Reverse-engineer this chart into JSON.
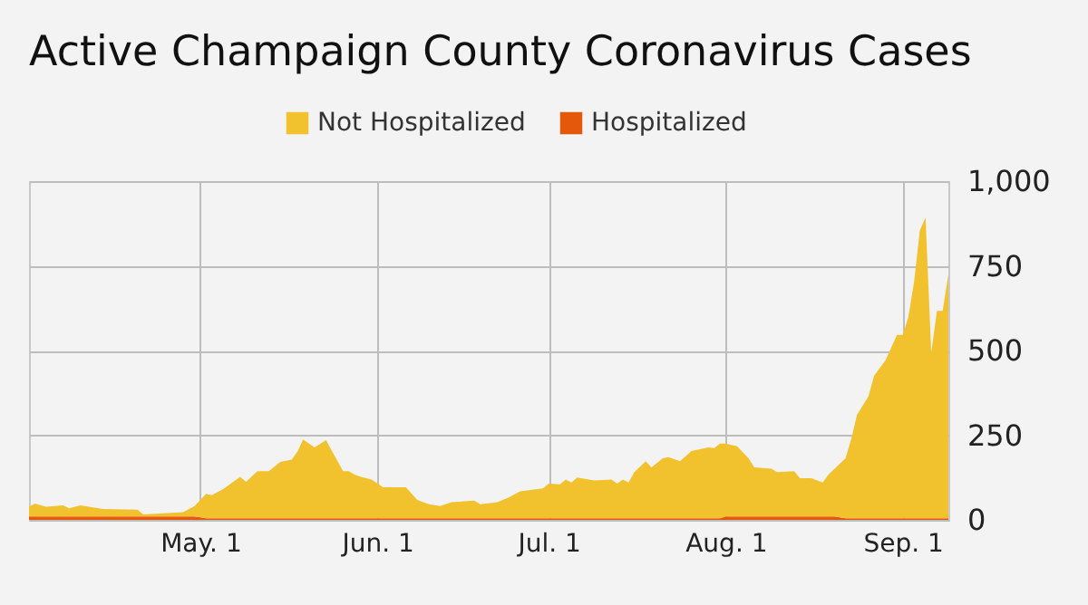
{
  "chart_data": {
    "type": "area",
    "title": "Active Champaign County Coronavirus Cases",
    "stacked": true,
    "x": [
      "--04-01",
      "--04-02",
      "--04-04",
      "--04-07",
      "--04-08",
      "--04-10",
      "--04-14",
      "--04-20",
      "--04-21",
      "--04-28",
      "--04-30",
      "--05-02",
      "--05-03",
      "--05-05",
      "--05-06",
      "--05-08",
      "--05-09",
      "--05-11",
      "--05-13",
      "--05-15",
      "--05-17",
      "--05-18",
      "--05-19",
      "--05-21",
      "--05-23",
      "--05-26",
      "--05-27",
      "--05-28",
      "--05-29",
      "--05-31",
      "--06-02",
      "--06-06",
      "--06-08",
      "--06-10",
      "--06-12",
      "--06-14",
      "--06-18",
      "--06-19",
      "--06-22",
      "--06-24",
      "--06-26",
      "--06-30",
      "--07-01",
      "--07-03",
      "--07-04",
      "--07-05",
      "--07-06",
      "--07-09",
      "--07-12",
      "--07-13",
      "--07-14",
      "--07-15",
      "--07-16",
      "--07-18",
      "--07-19",
      "--07-21",
      "--07-22",
      "--07-24",
      "--07-26",
      "--07-29",
      "--07-30",
      "--07-31",
      "--08-01",
      "--08-03",
      "--08-05",
      "--08-06",
      "--08-09",
      "--08-10",
      "--08-13",
      "--08-14",
      "--08-16",
      "--08-18",
      "--08-19",
      "--08-20",
      "--08-22",
      "--08-23",
      "--08-24",
      "--08-26",
      "--08-27",
      "--08-29",
      "--08-31",
      "--09-01",
      "--09-02",
      "--09-03",
      "--09-04",
      "--09-05",
      "--09-06",
      "--09-07",
      "--09-08",
      "--09-09"
    ],
    "series": [
      {
        "name": "Hospitalized",
        "color": "#e4580c",
        "values": [
          10,
          10,
          10,
          10,
          10,
          10,
          10,
          10,
          10,
          10,
          10,
          5,
          5,
          5,
          5,
          5,
          5,
          5,
          5,
          5,
          5,
          5,
          5,
          5,
          5,
          5,
          5,
          5,
          5,
          5,
          5,
          5,
          5,
          5,
          5,
          5,
          5,
          5,
          5,
          5,
          5,
          5,
          5,
          5,
          5,
          5,
          5,
          5,
          5,
          5,
          5,
          5,
          5,
          5,
          5,
          5,
          5,
          5,
          5,
          5,
          5,
          5,
          10,
          10,
          10,
          10,
          10,
          10,
          10,
          10,
          10,
          10,
          10,
          10,
          5,
          5,
          5,
          5,
          5,
          5,
          5,
          5,
          5,
          5,
          5,
          5,
          5,
          5,
          5,
          5
        ]
      },
      {
        "name": "Not Hospitalized",
        "color": "#f2c12e",
        "values": [
          29,
          38,
          29,
          33,
          24,
          33,
          22,
          20,
          6,
          13,
          31,
          72,
          68,
          86,
          98,
          122,
          107,
          139,
          139,
          166,
          173,
          196,
          232,
          209,
          230,
          139,
          139,
          129,
          123,
          114,
          91,
          91,
          54,
          41,
          36,
          47,
          52,
          41,
          47,
          61,
          79,
          88,
          102,
          100,
          114,
          105,
          120,
          111,
          114,
          102,
          114,
          105,
          136,
          168,
          150,
          177,
          180,
          168,
          198,
          209,
          207,
          220,
          215,
          207,
          172,
          145,
          141,
          131,
          134,
          113,
          113,
          100,
          124,
          140,
          177,
          234,
          305,
          359,
          421,
          466,
          541,
          541,
          594,
          698,
          849,
          888,
          488,
          612,
          612,
          719
        ]
      }
    ],
    "xlim": [
      "--04-01",
      "--09-09"
    ],
    "xticks": [
      {
        "value": "--05-01",
        "label": "May. 1"
      },
      {
        "value": "--06-01",
        "label": "Jun. 1"
      },
      {
        "value": "--07-01",
        "label": "Jul. 1"
      },
      {
        "value": "--08-01",
        "label": "Aug. 1"
      },
      {
        "value": "--09-01",
        "label": "Sep. 1"
      }
    ],
    "ylim": [
      0,
      1000
    ],
    "yticks": [
      0,
      250,
      500,
      750,
      {
        "value": 1000,
        "label": "1,000"
      }
    ],
    "grid": true,
    "legend": "top"
  }
}
